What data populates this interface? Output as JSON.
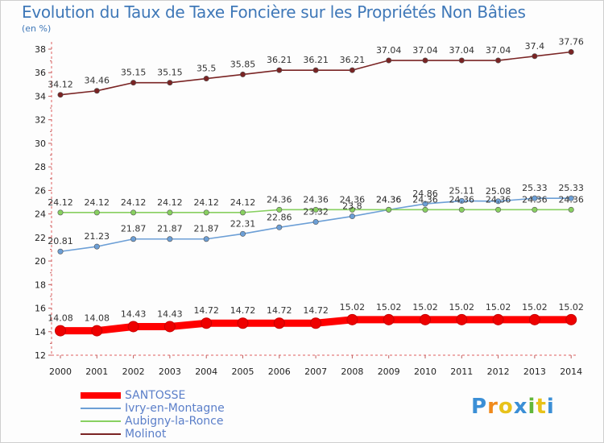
{
  "chart_data": {
    "type": "line",
    "title": "Evolution du Taux de Taxe Foncière sur les Propriétés Non Bâties",
    "ylabel": "(en %)",
    "xlabel": "",
    "categories": [
      "2000",
      "2001",
      "2002",
      "2003",
      "2004",
      "2005",
      "2006",
      "2007",
      "2008",
      "2009",
      "2010",
      "2011",
      "2012",
      "2013",
      "2014"
    ],
    "ylim": [
      12,
      38
    ],
    "yticks": [
      12,
      14,
      16,
      18,
      20,
      22,
      24,
      26,
      28,
      30,
      32,
      34,
      36,
      38
    ],
    "grid": false,
    "legend_position": "bottom-left",
    "series": [
      {
        "name": "SANTOSSE",
        "color": "#ff0000",
        "values": [
          14.08,
          14.08,
          14.43,
          14.43,
          14.72,
          14.72,
          14.72,
          14.72,
          15.02,
          15.02,
          15.02,
          15.02,
          15.02,
          15.02,
          15.02
        ]
      },
      {
        "name": "Ivry-en-Montagne",
        "color": "#6c9fd6",
        "values": [
          20.81,
          21.23,
          21.87,
          21.87,
          21.87,
          22.31,
          22.86,
          23.32,
          23.8,
          24.36,
          24.86,
          25.11,
          25.08,
          25.33,
          25.33
        ]
      },
      {
        "name": "Aubigny-la-Ronce",
        "color": "#88d060",
        "values": [
          24.12,
          24.12,
          24.12,
          24.12,
          24.12,
          24.12,
          24.36,
          24.36,
          24.36,
          24.36,
          24.36,
          24.36,
          24.36,
          24.36,
          24.36
        ]
      },
      {
        "name": "Molinot",
        "color": "#7a2424",
        "values": [
          34.12,
          34.46,
          35.15,
          35.15,
          35.5,
          35.85,
          36.21,
          36.21,
          36.21,
          37.04,
          37.04,
          37.04,
          37.04,
          37.4,
          37.76
        ]
      }
    ]
  },
  "logo": {
    "text": "Proxiti",
    "letters": [
      "P",
      "r",
      "o",
      "x",
      "i",
      "t",
      "i"
    ],
    "colors": [
      "#3b8fd6",
      "#f08a1c",
      "#e8c21a",
      "#3b8fd6",
      "#62b73a",
      "#e8c21a",
      "#3b8fd6"
    ]
  }
}
